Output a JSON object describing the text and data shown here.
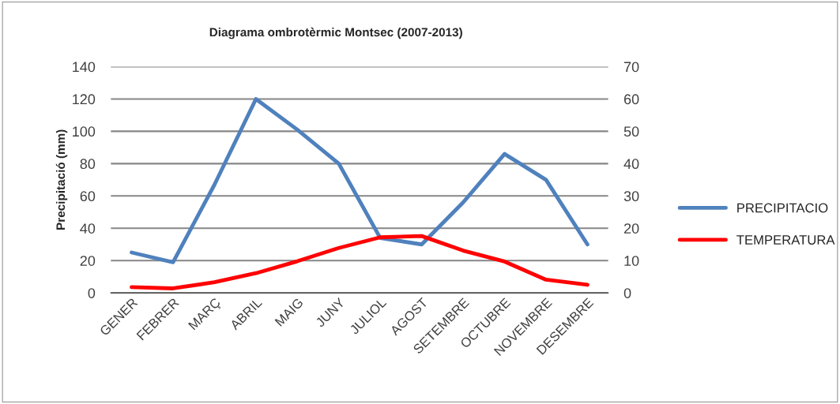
{
  "chart_data": {
    "type": "line",
    "title": "Diagrama ombrotèrmic Montsec (2007-2013)",
    "ylabel": "Precipitació (mm)",
    "categories": [
      "GENER",
      "FEBRER",
      "MARÇ",
      "ABRIL",
      "MAIG",
      "JUNY",
      "JULIOL",
      "AGOST",
      "SETEMBRE",
      "OCTUBRE",
      "NOVEMBRE",
      "DESEMBRE"
    ],
    "series": [
      {
        "name": "PRECIPITACIO",
        "color": "#4f81bd",
        "values": [
          25,
          19,
          67,
          120,
          101,
          80,
          34,
          30,
          56,
          86,
          70,
          30
        ]
      },
      {
        "name": "TEMPERATURA",
        "color": "#ff0000",
        "axis": "y2",
        "values": [
          1.8,
          1.4,
          3.3,
          6.1,
          9.8,
          13.9,
          17.2,
          17.6,
          13.1,
          9.7,
          4.1,
          2.5
        ]
      }
    ],
    "ylim": [
      0,
      140
    ],
    "yticks": [
      0,
      20,
      40,
      60,
      80,
      100,
      120,
      140
    ],
    "y2lim": [
      0,
      70
    ],
    "y2ticks": [
      0,
      10,
      20,
      30,
      40,
      50,
      60,
      70
    ],
    "grid": "y",
    "legend": "right",
    "marker": "none",
    "line_style": "solid"
  }
}
